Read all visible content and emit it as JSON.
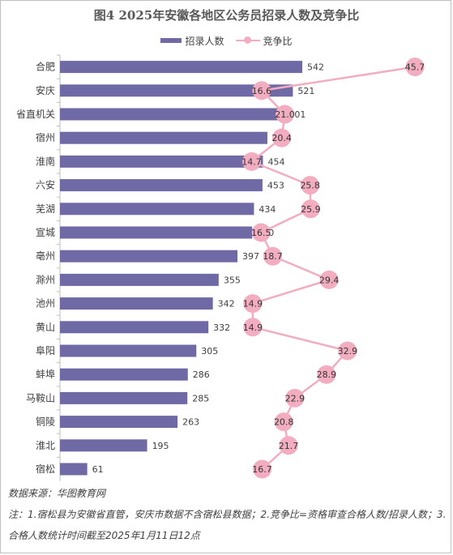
{
  "chart_data": {
    "type": "bar",
    "title": "图4 2025年安徽各地区公务员招录人数及竞争比",
    "categories": [
      "合肥",
      "安庆",
      "省直机关",
      "宿州",
      "淮南",
      "六安",
      "芜湖",
      "宣城",
      "亳州",
      "滁州",
      "池州",
      "黄山",
      "阜阳",
      "蚌埠",
      "马鞍山",
      "铜陵",
      "淮北",
      "宿松"
    ],
    "series": [
      {
        "name": "招录人数",
        "kind": "bar",
        "color": "#6f6aa6",
        "values": [
          542,
          521,
          501,
          464,
          454,
          453,
          434,
          430,
          397,
          355,
          342,
          332,
          305,
          286,
          285,
          263,
          195,
          61
        ]
      },
      {
        "name": "竞争比",
        "kind": "line",
        "color": "#f2aec0",
        "values": [
          45.7,
          16.6,
          21.0,
          20.4,
          14.7,
          25.8,
          25.9,
          16.5,
          18.7,
          29.4,
          14.9,
          14.9,
          32.9,
          28.9,
          22.9,
          20.8,
          21.7,
          16.7
        ]
      }
    ],
    "bar_xlim": [
      0,
      600
    ],
    "line_xlim": [
      10,
      50
    ],
    "legend_position": "top",
    "grid": false
  },
  "legend": {
    "bar_label": "招录人数",
    "line_label": "竞争比"
  },
  "footer": {
    "source": "数据来源：华图教育网",
    "note": "注：1.宿松县为安徽省直管，安庆市数据不含宿松县数据；2.竞争比=资格审查合格人数/招录人数；3.合格人数统计时间截至2025年1月11日12点"
  }
}
